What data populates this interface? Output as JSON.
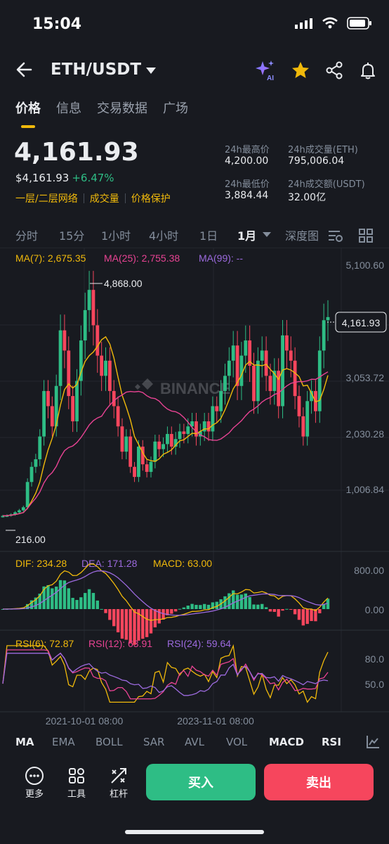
{
  "status_bar": {
    "time": "15:04"
  },
  "header": {
    "pair": "ETH/USDT"
  },
  "tabs": [
    "价格",
    "信息",
    "交易数据",
    "广场"
  ],
  "price": {
    "last": "4,161.93",
    "usd": "$4,161.93",
    "change": "+6.47%",
    "tags": [
      "一层/二层网络",
      "成交量",
      "价格保护"
    ]
  },
  "stats": {
    "high_label": "24h最高价",
    "high": "4,200.00",
    "vol_eth_label": "24h成交量(ETH)",
    "vol_eth": "795,006.04",
    "low_label": "24h最低价",
    "low": "3,884.44",
    "vol_usdt_label": "24h成交额(USDT)",
    "vol_usdt": "32.00亿"
  },
  "intervals": [
    "分时",
    "15分",
    "1小时",
    "4小时",
    "1日",
    "1月",
    "深度图"
  ],
  "active_interval": "1月",
  "chart": {
    "ma_labels": {
      "ma7": "MA(7): 2,675.35",
      "ma25": "MA(25): 2,755.38",
      "ma99": "MA(99): --"
    },
    "y_ticks": [
      "5,100.60",
      "3,053.72",
      "2,030.28",
      "1,006.84"
    ],
    "current_price_label": "4,161.93",
    "high_label": "4,868.00",
    "low_label": "216.00",
    "watermark": "BINANCE",
    "macd_labels": {
      "dif": "DIF: 234.28",
      "dea": "DEA: 171.28",
      "macd": "MACD: 63.00"
    },
    "macd_ticks": [
      "800.00",
      "0.00"
    ],
    "rsi_labels": {
      "rsi6": "RSI(6): 72.87",
      "rsi12": "RSI(12): 63.91",
      "rsi24": "RSI(24): 59.64"
    },
    "rsi_ticks": [
      "80.0",
      "50.0"
    ],
    "x_labels": [
      "2021-10-01 08:00",
      "2023-11-01 08:00"
    ],
    "colors": {
      "up": "#2EBD85",
      "down": "#F6465D",
      "ma7": "#F0B90B",
      "ma25": "#E84393",
      "ma99": "#9C6ADE"
    }
  },
  "indicators": [
    "MA",
    "EMA",
    "BOLL",
    "SAR",
    "AVL",
    "VOL",
    "MACD",
    "RSI"
  ],
  "bottom_bar": {
    "more": "更多",
    "tools": "工具",
    "leverage": "杠杆",
    "buy": "买入",
    "sell": "卖出"
  }
}
